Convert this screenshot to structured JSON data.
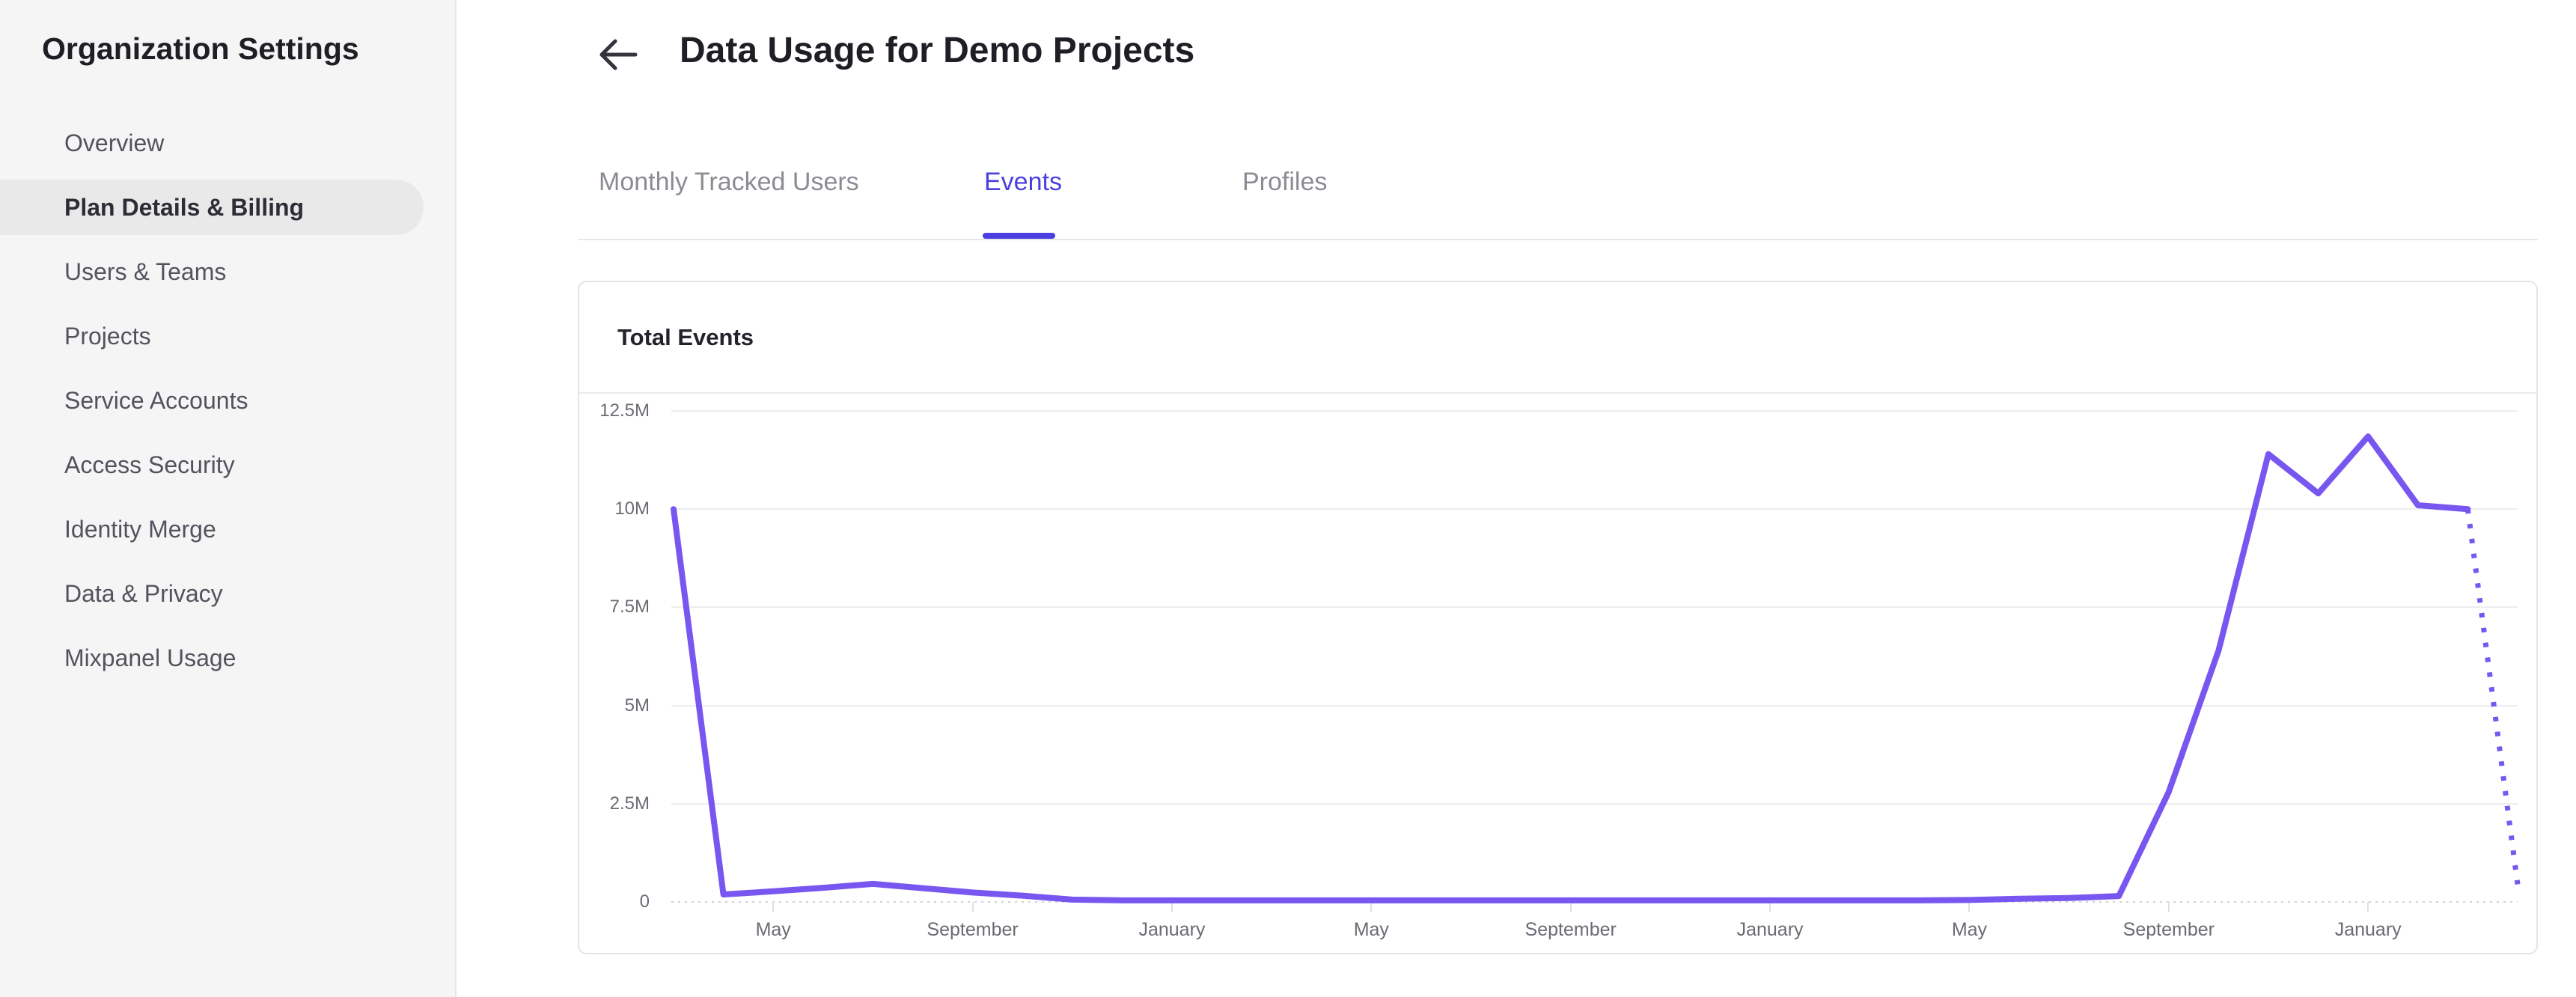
{
  "sidebar": {
    "title": "Organization Settings",
    "items": [
      {
        "label": "Overview",
        "selected": false
      },
      {
        "label": "Plan Details & Billing",
        "selected": true
      },
      {
        "label": "Users & Teams",
        "selected": false
      },
      {
        "label": "Projects",
        "selected": false
      },
      {
        "label": "Service Accounts",
        "selected": false
      },
      {
        "label": "Access Security",
        "selected": false
      },
      {
        "label": "Identity Merge",
        "selected": false
      },
      {
        "label": "Data & Privacy",
        "selected": false
      },
      {
        "label": "Mixpanel Usage",
        "selected": false
      }
    ]
  },
  "header": {
    "title": "Data Usage for Demo Projects",
    "back_icon": "left-arrow"
  },
  "tabs": [
    {
      "label": "Monthly Tracked Users",
      "active": false
    },
    {
      "label": "Events",
      "active": true
    },
    {
      "label": "Profiles",
      "active": false
    }
  ],
  "card": {
    "title": "Total Events"
  },
  "colors": {
    "accent": "#4b3fe0",
    "line": "#7857f0",
    "sidebar_bg": "#f5f5f6",
    "selected_item_bg": "#e9e9ea",
    "card_border": "#e4e4e7",
    "grid": "#ededf0",
    "axis_text": "#6b6b74"
  },
  "chart_data": {
    "type": "line",
    "title": "Total Events",
    "ylabel": "",
    "xlabel": "",
    "grid": "horizontal",
    "legend": "none",
    "ylim_millions": [
      0,
      12.5
    ],
    "y_tick_labels": [
      "12.5M",
      "10M",
      "7.5M",
      "5M",
      "2.5M",
      "0"
    ],
    "y_tick_values_millions": [
      12.5,
      10,
      7.5,
      5,
      2.5,
      0
    ],
    "x_tick_labels": [
      "May",
      "September",
      "January",
      "May",
      "September",
      "January",
      "May",
      "September",
      "January"
    ],
    "x_tick_point_indices": [
      2,
      6,
      10,
      14,
      18,
      22,
      26,
      30,
      34
    ],
    "points_are_monthly": true,
    "projected_last_segment_dotted": true,
    "series": [
      {
        "name": "Total Events",
        "unit": "million events",
        "values_millions": [
          10,
          0.19,
          0.27,
          0.36,
          0.46,
          0.35,
          0.24,
          0.16,
          0.06,
          0.04,
          0.04,
          0.04,
          0.04,
          0.04,
          0.04,
          0.04,
          0.04,
          0.04,
          0.04,
          0.04,
          0.04,
          0.04,
          0.04,
          0.04,
          0.04,
          0.04,
          0.05,
          0.08,
          0.1,
          0.15,
          2.8,
          6.4,
          11.4,
          10.4,
          11.85,
          10.1,
          10.0,
          0.45
        ]
      }
    ]
  }
}
